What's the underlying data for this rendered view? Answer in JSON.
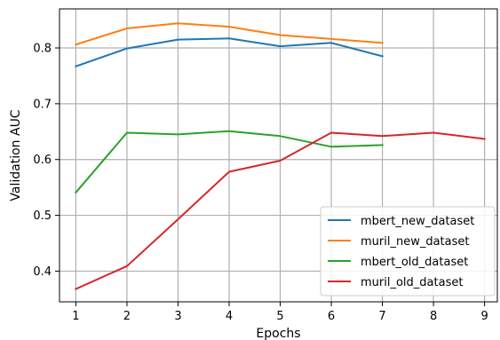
{
  "chart_data": {
    "type": "line",
    "title": "",
    "xlabel": "Epochs",
    "ylabel": "Validation AUC",
    "xlim": [
      0.68,
      9.25
    ],
    "ylim": [
      0.345,
      0.87
    ],
    "x_ticks": [
      1,
      2,
      3,
      4,
      5,
      6,
      7,
      8,
      9
    ],
    "y_ticks": [
      0.4,
      0.5,
      0.6,
      0.7,
      0.8
    ],
    "y_tick_labels": [
      "0.4",
      "0.5",
      "0.6",
      "0.7",
      "0.8"
    ],
    "grid": true,
    "legend_position": "bottom-right",
    "series": [
      {
        "name": "mbert_new_dataset",
        "color": "#1f77b4",
        "x": [
          1,
          2,
          3,
          4,
          5,
          6,
          7
        ],
        "values": [
          0.767,
          0.799,
          0.815,
          0.817,
          0.803,
          0.809,
          0.785
        ]
      },
      {
        "name": "muril_new_dataset",
        "color": "#ff7f0e",
        "x": [
          1,
          2,
          3,
          4,
          5,
          6,
          7
        ],
        "values": [
          0.806,
          0.835,
          0.844,
          0.838,
          0.823,
          0.816,
          0.809
        ]
      },
      {
        "name": "mbert_old_dataset",
        "color": "#2ca02c",
        "x": [
          1,
          2,
          3,
          4,
          5,
          6,
          7
        ],
        "values": [
          0.541,
          0.648,
          0.645,
          0.651,
          0.642,
          0.623,
          0.626
        ]
      },
      {
        "name": "muril_old_dataset",
        "color": "#d62728",
        "x": [
          1,
          2,
          3,
          4,
          5,
          6,
          7,
          8,
          9
        ],
        "values": [
          0.368,
          0.409,
          0.493,
          0.578,
          0.598,
          0.648,
          0.642,
          0.648,
          0.637
        ]
      }
    ]
  }
}
